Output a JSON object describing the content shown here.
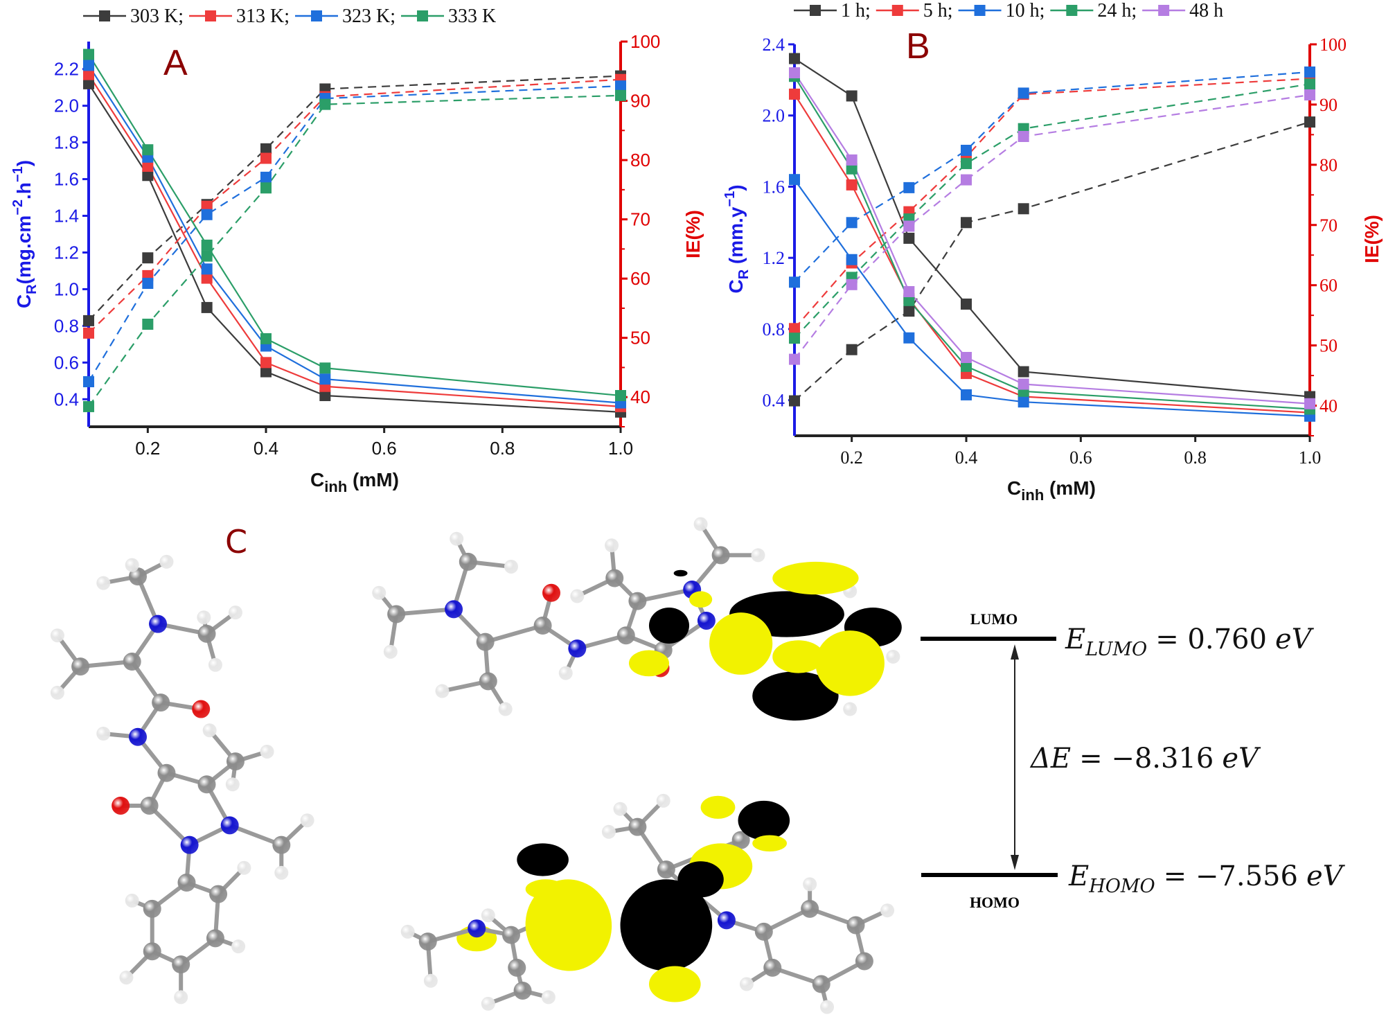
{
  "chart_data": [
    {
      "panel": "A",
      "type": "line",
      "x": [
        0.1,
        0.2,
        0.3,
        0.4,
        0.5,
        1.0
      ],
      "xlabel": {
        "base": "C",
        "sub": "inh",
        "unit": " (mM)"
      },
      "xticks": [
        "0.2",
        "0.4",
        "0.6",
        "0.8",
        "1.0"
      ],
      "xtick_values": [
        0.2,
        0.4,
        0.6,
        0.8,
        1.0
      ],
      "xlim": [
        0.1,
        1.0
      ],
      "ylabel_left": {
        "base": "C",
        "sub": "R",
        "a": "(mg.cm",
        "sup1": "−2",
        "b": ".h",
        "sup2": "−1",
        "c": ")"
      },
      "ylabel_right": "IE(%)",
      "ylim_left": [
        0.25,
        2.35
      ],
      "ylim_right": [
        35,
        100
      ],
      "yticks_left": [
        "0.4",
        "0.6",
        "0.8",
        "1.0",
        "1.2",
        "1.4",
        "1.6",
        "1.8",
        "2.0",
        "2.2"
      ],
      "yticks_right": [
        "40",
        "50",
        "60",
        "70",
        "80",
        "90",
        "100"
      ],
      "legend_separator": ";",
      "legend_placement": "top",
      "left_axis_color": "#1a1ae6",
      "right_axis_color": "#e00000",
      "grid": false,
      "series": [
        {
          "name": "303 K",
          "color": "#3c3c3c",
          "CR": [
            2.12,
            1.62,
            0.9,
            0.55,
            0.42,
            0.33
          ],
          "IE": [
            52.9,
            63.5,
            72.5,
            81.9,
            92.0,
            94.2
          ]
        },
        {
          "name": "313 K",
          "color": "#ee3b3b",
          "CR": [
            2.17,
            1.67,
            1.06,
            0.6,
            0.47,
            0.36
          ],
          "IE": [
            50.8,
            60.5,
            72.2,
            80.3,
            90.7,
            93.6
          ]
        },
        {
          "name": "323 K",
          "color": "#1f6fdc",
          "CR": [
            2.22,
            1.72,
            1.11,
            0.69,
            0.51,
            0.38
          ],
          "IE": [
            42.6,
            59.2,
            70.8,
            77.1,
            90.4,
            92.5
          ]
        },
        {
          "name": "333 K",
          "color": "#2b9e68",
          "CR": [
            2.28,
            1.76,
            1.24,
            0.73,
            0.57,
            0.42
          ],
          "IE": [
            38.4,
            52.3,
            63.8,
            75.3,
            89.4,
            90.9
          ]
        }
      ]
    },
    {
      "panel": "B",
      "type": "line",
      "x": [
        0.1,
        0.2,
        0.3,
        0.4,
        0.5,
        1.0
      ],
      "xlabel": {
        "base": "C",
        "sub": "inh",
        "unit": " (mM)"
      },
      "xticks": [
        "0.2",
        "0.4",
        "0.6",
        "0.8",
        "1.0"
      ],
      "xtick_values": [
        0.2,
        0.4,
        0.6,
        0.8,
        1.0
      ],
      "xlim": [
        0.1,
        1.0
      ],
      "ylabel_left": {
        "base": "C",
        "sub": "R",
        "a": " (mm.y",
        "sup1": "−1",
        "b": "",
        "sup2": "",
        "c": ")"
      },
      "ylabel_right": "IE(%)",
      "ylim_left": [
        0.2,
        2.4
      ],
      "ylim_right": [
        35,
        100
      ],
      "yticks_left": [
        "0.4",
        "0.8",
        "1.2",
        "1.6",
        "2.0",
        "2.4"
      ],
      "yticks_right": [
        "40",
        "50",
        "60",
        "70",
        "80",
        "90",
        "100"
      ],
      "legend_separator": ";",
      "legend_placement": "top",
      "left_axis_color": "#1a1ae6",
      "right_axis_color": "#e00000",
      "grid": false,
      "series": [
        {
          "name": "1 h",
          "color": "#3c3c3c",
          "CR": [
            2.32,
            2.11,
            1.31,
            0.94,
            0.56,
            0.42
          ],
          "IE": [
            40.8,
            49.3,
            55.7,
            70.4,
            72.7,
            87.1
          ]
        },
        {
          "name": "5 h",
          "color": "#ee3b3b",
          "CR": [
            2.12,
            1.61,
            0.97,
            0.55,
            0.42,
            0.33
          ],
          "IE": [
            52.8,
            63.7,
            72.2,
            81.3,
            91.7,
            94.3
          ]
        },
        {
          "name": "10 h",
          "color": "#1f6fdc",
          "CR": [
            1.64,
            1.19,
            0.75,
            0.43,
            0.39,
            0.31
          ],
          "IE": [
            60.5,
            70.4,
            76.2,
            82.4,
            91.9,
            95.4
          ]
        },
        {
          "name": "24 h",
          "color": "#2b9e68",
          "CR": [
            2.22,
            1.7,
            0.96,
            0.59,
            0.45,
            0.35
          ],
          "IE": [
            51.2,
            61.3,
            71.0,
            80.2,
            86.0,
            93.4
          ]
        },
        {
          "name": "48 h",
          "color": "#b57de2",
          "CR": [
            2.24,
            1.75,
            1.01,
            0.64,
            0.49,
            0.38
          ],
          "IE": [
            47.7,
            60.1,
            69.8,
            77.5,
            84.7,
            91.6
          ]
        }
      ]
    }
  ],
  "panel_c": {
    "label": "C",
    "lumo_label": "LUMO",
    "homo_label": "HOMO",
    "e_lumo": {
      "symbol": "E",
      "sub": "LUMO",
      "value": "= 0.760",
      "unit": "eV"
    },
    "delta_e": {
      "symbol": "ΔE",
      "value": "= −8.316",
      "unit": "eV"
    },
    "e_homo": {
      "symbol": "E",
      "sub": "HOMO",
      "value": "= −7.556",
      "unit": "eV"
    },
    "orbital_colors": {
      "positive": "#f2f200",
      "negative": "#000000"
    },
    "atom_colors": {
      "C": "#8c8c8c",
      "H": "#e6e6e6",
      "N": "#1515d0",
      "O": "#e01010"
    }
  }
}
